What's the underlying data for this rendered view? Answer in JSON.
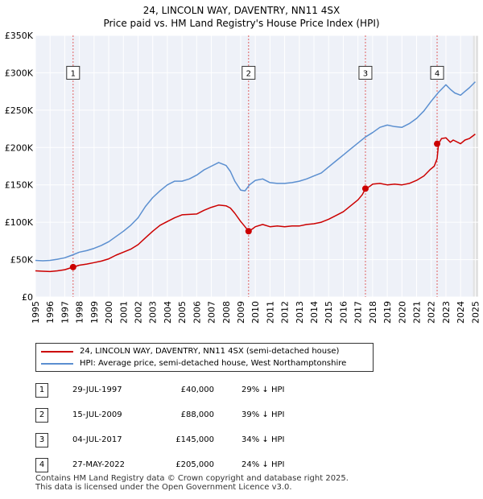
{
  "chart_data": {
    "type": "line",
    "title": "24, LINCOLN WAY, DAVENTRY, NN11 4SX",
    "subtitle": "Price paid vs. HM Land Registry's House Price Index (HPI)",
    "xlabel": "",
    "ylabel": "",
    "xlim": [
      1995,
      2025.2
    ],
    "ylim": [
      0,
      350000
    ],
    "x_ticks": [
      "1995",
      "1996",
      "1997",
      "1998",
      "1999",
      "2000",
      "2001",
      "2002",
      "2003",
      "2004",
      "2005",
      "2006",
      "2007",
      "2008",
      "2009",
      "2010",
      "2011",
      "2012",
      "2013",
      "2014",
      "2015",
      "2016",
      "2017",
      "2018",
      "2019",
      "2020",
      "2021",
      "2022",
      "2023",
      "2024",
      "2025"
    ],
    "y_ticks": [
      {
        "value": 0,
        "label": "£0"
      },
      {
        "value": 50000,
        "label": "£50K"
      },
      {
        "value": 100000,
        "label": "£100K"
      },
      {
        "value": 150000,
        "label": "£150K"
      },
      {
        "value": 200000,
        "label": "£200K"
      },
      {
        "value": 250000,
        "label": "£250K"
      },
      {
        "value": 300000,
        "label": "£300K"
      },
      {
        "value": 350000,
        "label": "£350K"
      }
    ],
    "grid": true,
    "series": [
      {
        "name": "24, LINCOLN WAY, DAVENTRY, NN11 4SX (semi-detached house)",
        "color": "#cc0000",
        "x": [
          1995.0,
          1995.5,
          1996.0,
          1996.5,
          1997.0,
          1997.57,
          1998.0,
          1998.5,
          1999.0,
          1999.5,
          2000.0,
          2000.5,
          2001.0,
          2001.5,
          2002.0,
          2002.5,
          2003.0,
          2003.5,
          2004.0,
          2004.5,
          2005.0,
          2005.5,
          2006.0,
          2006.5,
          2007.0,
          2007.5,
          2008.0,
          2008.3,
          2008.6,
          2009.0,
          2009.3,
          2009.54,
          2009.8,
          2010.0,
          2010.5,
          2011.0,
          2011.5,
          2012.0,
          2012.5,
          2013.0,
          2013.5,
          2014.0,
          2014.5,
          2015.0,
          2015.5,
          2016.0,
          2016.5,
          2017.0,
          2017.3,
          2017.51,
          2017.8,
          2018.0,
          2018.5,
          2019.0,
          2019.5,
          2020.0,
          2020.5,
          2021.0,
          2021.5,
          2021.9,
          2022.2,
          2022.4,
          2022.5,
          2022.7,
          2023.0,
          2023.3,
          2023.5,
          2024.0,
          2024.3,
          2024.6,
          2025.0
        ],
        "y": [
          35000,
          34500,
          34000,
          35000,
          36500,
          40000,
          42500,
          44000,
          46000,
          48000,
          51000,
          56000,
          60000,
          64000,
          70000,
          79000,
          88000,
          96000,
          101000,
          106000,
          110000,
          110500,
          111000,
          116000,
          120000,
          123000,
          122000,
          119000,
          112000,
          101000,
          94000,
          88000,
          91000,
          94000,
          97000,
          94000,
          95000,
          94000,
          95000,
          95000,
          97000,
          98000,
          100000,
          104000,
          109000,
          114000,
          122000,
          130000,
          137000,
          145000,
          148000,
          151000,
          152000,
          150000,
          151000,
          150000,
          152000,
          156000,
          162000,
          170000,
          175000,
          185000,
          205000,
          212000,
          213000,
          207000,
          210000,
          205000,
          210000,
          212000,
          218000
        ]
      },
      {
        "name": "HPI: Average price, semi-detached house, West Northamptonshire",
        "color": "#5b8fd0",
        "x": [
          1995.0,
          1995.5,
          1996.0,
          1996.5,
          1997.0,
          1997.5,
          1998.0,
          1998.5,
          1999.0,
          1999.5,
          2000.0,
          2000.5,
          2001.0,
          2001.5,
          2002.0,
          2002.5,
          2003.0,
          2003.5,
          2004.0,
          2004.5,
          2005.0,
          2005.5,
          2006.0,
          2006.5,
          2007.0,
          2007.5,
          2008.0,
          2008.3,
          2008.6,
          2009.0,
          2009.3,
          2009.6,
          2010.0,
          2010.5,
          2011.0,
          2011.5,
          2012.0,
          2012.5,
          2013.0,
          2013.5,
          2014.0,
          2014.5,
          2015.0,
          2015.5,
          2016.0,
          2016.5,
          2017.0,
          2017.5,
          2018.0,
          2018.5,
          2019.0,
          2019.5,
          2020.0,
          2020.5,
          2021.0,
          2021.5,
          2022.0,
          2022.5,
          2023.0,
          2023.3,
          2023.6,
          2024.0,
          2024.3,
          2024.6,
          2025.0
        ],
        "y": [
          49000,
          48500,
          49000,
          50500,
          52500,
          56000,
          60000,
          62000,
          65000,
          69000,
          74000,
          81000,
          88000,
          96000,
          106000,
          121000,
          133000,
          142000,
          150000,
          155000,
          155000,
          158000,
          163000,
          170000,
          175000,
          180000,
          176000,
          168000,
          155000,
          143000,
          142000,
          150000,
          156000,
          158000,
          153000,
          152000,
          152000,
          153000,
          155000,
          158000,
          162000,
          166000,
          174000,
          182000,
          190000,
          198000,
          206000,
          214000,
          220000,
          227000,
          230000,
          228000,
          227000,
          232000,
          239000,
          249000,
          262000,
          274000,
          284000,
          278000,
          273000,
          270000,
          275000,
          280000,
          288000
        ]
      }
    ],
    "sales": [
      {
        "label": "1",
        "x": 1997.57,
        "y": 40000
      },
      {
        "label": "2",
        "x": 2009.54,
        "y": 88000
      },
      {
        "label": "3",
        "x": 2017.51,
        "y": 145000
      },
      {
        "label": "4",
        "x": 2022.4,
        "y": 205000
      }
    ],
    "marker_box_value": 300000,
    "shade_start": 2024.85
  },
  "legend": {
    "property_label": "24, LINCOLN WAY, DAVENTRY, NN11 4SX (semi-detached house)",
    "hpi_label": "HPI: Average price, semi-detached house, West Northamptonshire",
    "property_color": "#cc0000",
    "hpi_color": "#5b8fd0"
  },
  "sales_table": [
    {
      "num": "1",
      "date": "29-JUL-1997",
      "price": "£40,000",
      "hpi": "29% ↓ HPI"
    },
    {
      "num": "2",
      "date": "15-JUL-2009",
      "price": "£88,000",
      "hpi": "39% ↓ HPI"
    },
    {
      "num": "3",
      "date": "04-JUL-2017",
      "price": "£145,000",
      "hpi": "34% ↓ HPI"
    },
    {
      "num": "4",
      "date": "27-MAY-2022",
      "price": "£205,000",
      "hpi": "24% ↓ HPI"
    }
  ],
  "footer": {
    "line1": "Contains HM Land Registry data © Crown copyright and database right 2025.",
    "line2": "This data is licensed under the Open Government Licence v3.0."
  }
}
